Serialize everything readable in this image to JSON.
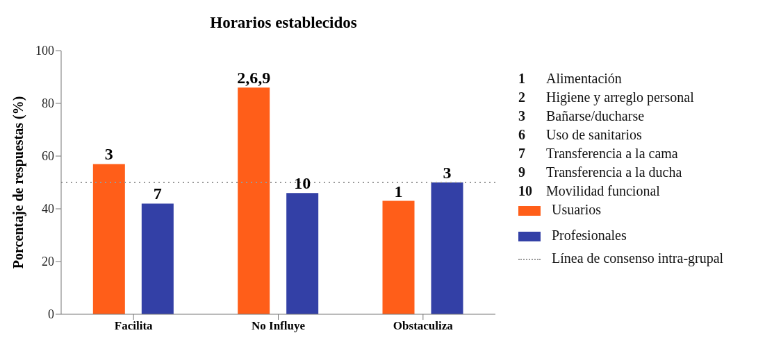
{
  "chart_data": {
    "type": "bar",
    "title": "Horarios establecidos",
    "ylabel": "Porcentaje de respuestas (%)",
    "categories": [
      "Facilita",
      "No Influye",
      "Obstaculiza"
    ],
    "series": [
      {
        "name": "Usuarios",
        "color": "#ff5e19",
        "values": [
          57,
          86,
          43
        ]
      },
      {
        "name": "Profesionales",
        "color": "#3340a6",
        "values": [
          42,
          46,
          50
        ]
      }
    ],
    "ylim": [
      0,
      100
    ],
    "yticks": [
      0,
      20,
      40,
      60,
      80,
      100
    ],
    "grid": false,
    "legend": "right",
    "ref_lines": [
      {
        "axis": "y",
        "value": 50,
        "label": "Línea de consenso intra-grupal",
        "color": "#999999",
        "line_style": "dotted"
      }
    ],
    "annotations": [
      "3",
      "7",
      "2,6,9",
      "10",
      "1",
      "3",
      "1 Alimentación",
      "2 Higiene y arreglo personal",
      "3 Bañarse/ducharse",
      "6 Uso de sanitarios",
      "7 Transferencia a la cama",
      "9 Transferencia a la ducha",
      "10 Movilidad funcional"
    ]
  }
}
